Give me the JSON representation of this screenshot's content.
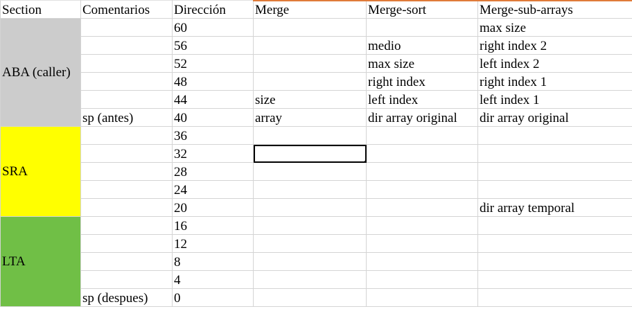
{
  "headers": [
    "Section",
    "Comentarios",
    "Dirección",
    "Merge",
    "Merge-sort",
    "Merge-sub-arrays"
  ],
  "sections": [
    {
      "name": "ABA (caller)",
      "color": "#cccccc",
      "rows": 6
    },
    {
      "name": "SRA",
      "color": "#ffff00",
      "rows": 5
    },
    {
      "name": "LTA",
      "color": "#70bf46",
      "rows": 5
    }
  ],
  "rows": [
    {
      "comentario": "",
      "direccion": "60",
      "merge": "",
      "merge_sort": "",
      "merge_sub": "max size"
    },
    {
      "comentario": "",
      "direccion": "56",
      "merge": "",
      "merge_sort": "medio",
      "merge_sub": "right index 2"
    },
    {
      "comentario": "",
      "direccion": "52",
      "merge": "",
      "merge_sort": "max size",
      "merge_sub": "left index 2"
    },
    {
      "comentario": "",
      "direccion": "48",
      "merge": "",
      "merge_sort": "right index",
      "merge_sub": "right index 1"
    },
    {
      "comentario": "",
      "direccion": "44",
      "merge": "size",
      "merge_sort": "left index",
      "merge_sub": "left index 1"
    },
    {
      "comentario": "sp (antes)",
      "direccion": "40",
      "merge": "array",
      "merge_sort": "dir array original",
      "merge_sub": "dir array original"
    },
    {
      "comentario": "",
      "direccion": "36",
      "merge": "",
      "merge_sort": "",
      "merge_sub": ""
    },
    {
      "comentario": "",
      "direccion": "32",
      "merge": "",
      "merge_sort": "",
      "merge_sub": ""
    },
    {
      "comentario": "",
      "direccion": "28",
      "merge": "",
      "merge_sort": "",
      "merge_sub": ""
    },
    {
      "comentario": "",
      "direccion": "24",
      "merge": "",
      "merge_sort": "",
      "merge_sub": ""
    },
    {
      "comentario": "",
      "direccion": "20",
      "merge": "",
      "merge_sort": "",
      "merge_sub": "dir array temporal"
    },
    {
      "comentario": "",
      "direccion": "16",
      "merge": "",
      "merge_sort": "",
      "merge_sub": ""
    },
    {
      "comentario": "",
      "direccion": "12",
      "merge": "",
      "merge_sort": "",
      "merge_sub": ""
    },
    {
      "comentario": "",
      "direccion": "8",
      "merge": "",
      "merge_sort": "",
      "merge_sub": ""
    },
    {
      "comentario": "",
      "direccion": "4",
      "merge": "",
      "merge_sort": "",
      "merge_sub": ""
    },
    {
      "comentario": "sp (despues)",
      "direccion": "0",
      "merge": "",
      "merge_sort": "",
      "merge_sub": ""
    }
  ],
  "selected_cell": {
    "row": 7,
    "column": "merge"
  }
}
